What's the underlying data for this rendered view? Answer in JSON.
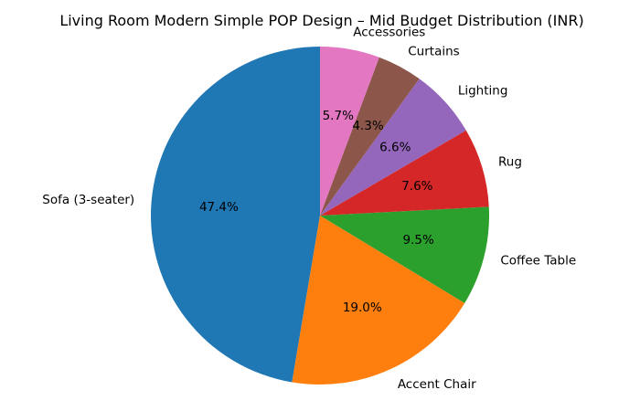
{
  "chart_data": {
    "type": "pie",
    "title": "Living Room Modern Simple POP Design – Mid Budget Distribution (INR)",
    "categories": [
      "Sofa (3-seater)",
      "Accent Chair",
      "Coffee Table",
      "Rug",
      "Lighting",
      "Curtains",
      "Accessories"
    ],
    "values": [
      47.4,
      19.0,
      9.5,
      7.6,
      6.6,
      4.3,
      5.7
    ],
    "percent_labels": [
      "47.4%",
      "19.0%",
      "9.5%",
      "7.6%",
      "6.6%",
      "4.3%",
      "5.7%"
    ],
    "colors": [
      "#1f77b4",
      "#ff7f0e",
      "#2ca02c",
      "#d62728",
      "#9467bd",
      "#8c564b",
      "#e377c2"
    ],
    "start_angle_deg": 90,
    "direction": "counterclockwise",
    "legend": "none"
  }
}
